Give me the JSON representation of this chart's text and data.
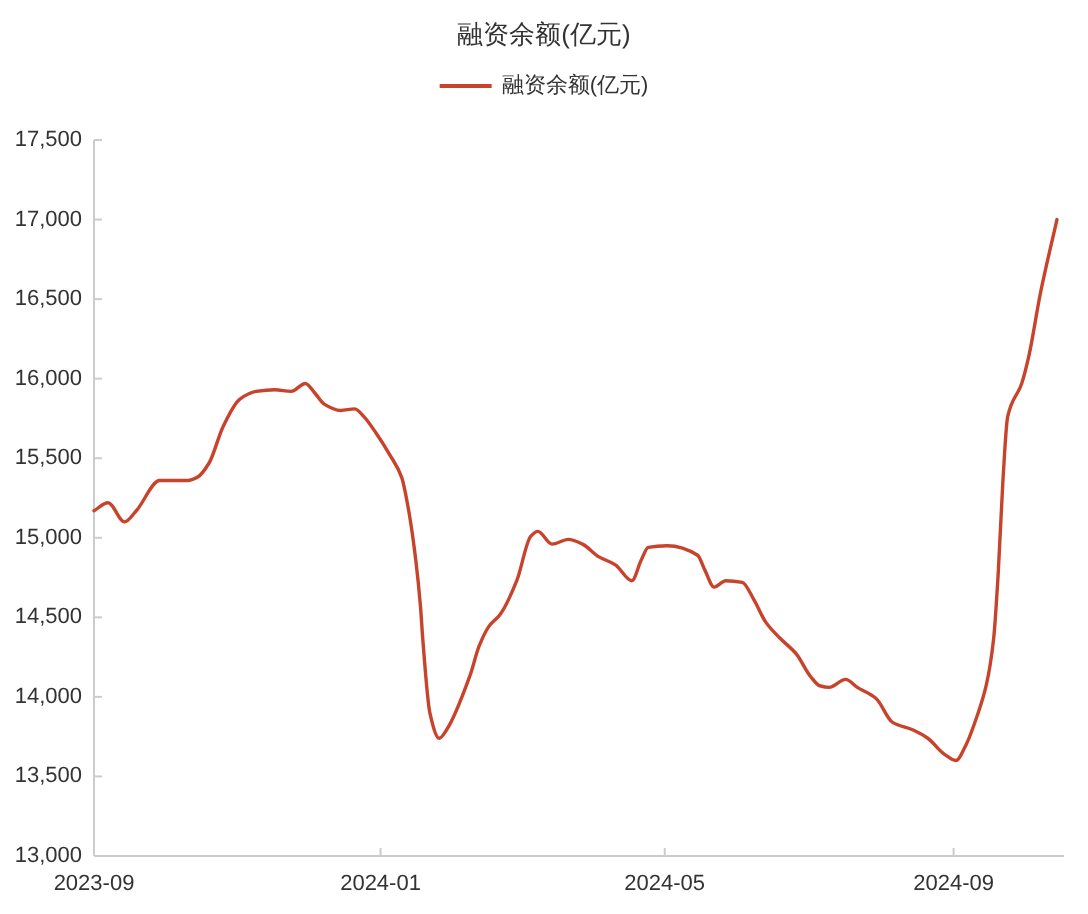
{
  "chart_data": {
    "type": "line",
    "title": "融资余额(亿元)",
    "legend": "top",
    "marker": "none",
    "line_style": "solid",
    "grid": false,
    "x": [
      "2023-09-01",
      "2023-09-07",
      "2023-09-14",
      "2023-09-19",
      "2023-09-29",
      "2023-10-11",
      "2023-10-15",
      "2023-10-20",
      "2023-10-26",
      "2023-11-02",
      "2023-11-09",
      "2023-11-17",
      "2023-11-24",
      "2023-11-30",
      "2023-12-04",
      "2023-12-08",
      "2023-12-15",
      "2023-12-21",
      "2023-12-25",
      "2023-12-30",
      "2024-01-05",
      "2024-01-10",
      "2024-01-13",
      "2024-01-16",
      "2024-01-18",
      "2024-01-19",
      "2024-01-22",
      "2024-01-26",
      "2024-01-29",
      "2024-02-08",
      "2024-02-12",
      "2024-02-16",
      "2024-02-21",
      "2024-02-28",
      "2024-03-05",
      "2024-03-08",
      "2024-03-14",
      "2024-03-21",
      "2024-03-27",
      "2024-04-03",
      "2024-04-10",
      "2024-04-17",
      "2024-04-21",
      "2024-04-24",
      "2024-05-02",
      "2024-05-15",
      "2024-05-18",
      "2024-05-22",
      "2024-05-27",
      "2024-06-03",
      "2024-06-08",
      "2024-06-13",
      "2024-06-19",
      "2024-06-26",
      "2024-07-02",
      "2024-07-06",
      "2024-07-10",
      "2024-07-17",
      "2024-07-22",
      "2024-07-30",
      "2024-08-06",
      "2024-08-15",
      "2024-08-21",
      "2024-08-28",
      "2024-09-02",
      "2024-09-06",
      "2024-09-11",
      "2024-09-15",
      "2024-09-18",
      "2024-09-20",
      "2024-09-22",
      "2024-09-24",
      "2024-09-30",
      "2024-10-03",
      "2024-10-08",
      "2024-10-15"
    ],
    "series": [
      {
        "name": "融资余额(亿元)",
        "color": "#c8432b",
        "values": [
          15170,
          15220,
          15100,
          15170,
          15360,
          15360,
          15380,
          15470,
          15700,
          15870,
          15920,
          15930,
          15920,
          15970,
          15910,
          15840,
          15800,
          15810,
          15760,
          15660,
          15520,
          15380,
          15170,
          14860,
          14570,
          14360,
          13900,
          13740,
          13790,
          14130,
          14320,
          14440,
          14520,
          14730,
          15010,
          15040,
          14960,
          14990,
          14960,
          14880,
          14830,
          14730,
          14860,
          14940,
          14950,
          14890,
          14800,
          14690,
          14730,
          14720,
          14610,
          14470,
          14370,
          14270,
          14130,
          14070,
          14060,
          14110,
          14060,
          13990,
          13840,
          13790,
          13740,
          13640,
          13600,
          13690,
          13880,
          14080,
          14360,
          14780,
          15360,
          15760,
          15970,
          16140,
          16540,
          17000
        ]
      }
    ],
    "xlim": [
      "2023-09-01",
      "2024-10-18"
    ],
    "xticks": [
      "2023-09",
      "2024-01",
      "2024-05",
      "2024-09"
    ],
    "ylim": [
      13000,
      17500
    ],
    "yticks": [
      {
        "value": 13000,
        "label": "13,000"
      },
      {
        "value": 13500,
        "label": "13,500"
      },
      {
        "value": 14000,
        "label": "14,000"
      },
      {
        "value": 14500,
        "label": "14,500"
      },
      {
        "value": 15000,
        "label": "15,000"
      },
      {
        "value": 15500,
        "label": "15,500"
      },
      {
        "value": 16000,
        "label": "16,000"
      },
      {
        "value": 16500,
        "label": "16,500"
      },
      {
        "value": 17000,
        "label": "17,000"
      },
      {
        "value": 17500,
        "label": "17,500"
      }
    ]
  }
}
